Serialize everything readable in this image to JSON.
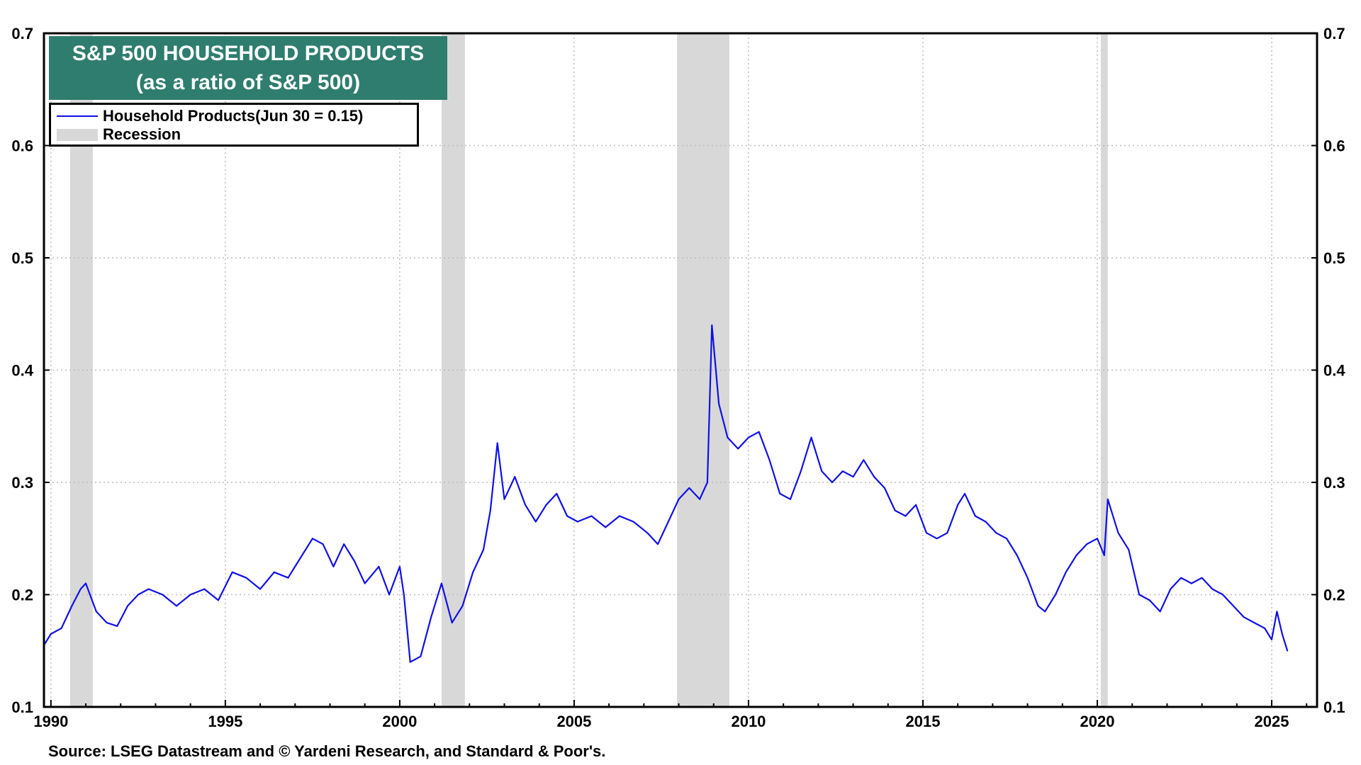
{
  "title": {
    "line1": "S&P 500 HOUSEHOLD PRODUCTS",
    "line2": "(as a ratio of S&P 500)",
    "background": "#2e7d6e"
  },
  "legend": {
    "series_label": "Household Products(Jun 30 = 0.15)",
    "recession_label": "Recession"
  },
  "source": "Source: LSEG Datastream and © Yardeni Research, and Standard & Poor's.",
  "colors": {
    "series": "#1010e8",
    "recession": "#d8d8d8",
    "grid": "#bbbbbb"
  },
  "chart_data": {
    "type": "line",
    "title": "S&P 500 HOUSEHOLD PRODUCTS",
    "subtitle": "(as a ratio of S&P 500)",
    "xlabel": "",
    "ylabel": "",
    "xlim": [
      1989.8,
      2026.3
    ],
    "ylim": [
      0.1,
      0.7
    ],
    "y_ticks": [
      0.1,
      0.2,
      0.3,
      0.4,
      0.5,
      0.6,
      0.7
    ],
    "y_tick_labels": [
      "0.1",
      "0.2",
      "0.3",
      "0.4",
      "0.5",
      "0.6",
      "0.7"
    ],
    "x_ticks": [
      1990,
      1995,
      2000,
      2005,
      2010,
      2015,
      2020,
      2025
    ],
    "x_tick_labels": [
      "1990",
      "1995",
      "2000",
      "2005",
      "2010",
      "2015",
      "2020",
      "2025"
    ],
    "grid": true,
    "y_axis_both_sides": true,
    "recessions": [
      [
        1990.55,
        1991.2
      ],
      [
        2001.2,
        2001.87
      ],
      [
        2007.95,
        2009.45
      ],
      [
        2020.1,
        2020.3
      ]
    ],
    "series": [
      {
        "name": "Household Products(Jun 30 = 0.15)",
        "x": [
          1989.8,
          1990.0,
          1990.3,
          1990.6,
          1990.85,
          1991.0,
          1991.3,
          1991.6,
          1991.9,
          1992.2,
          1992.5,
          1992.8,
          1993.2,
          1993.6,
          1994.0,
          1994.4,
          1994.8,
          1995.2,
          1995.6,
          1996.0,
          1996.4,
          1996.8,
          1997.2,
          1997.5,
          1997.8,
          1998.1,
          1998.4,
          1998.7,
          1999.0,
          1999.4,
          1999.7,
          2000.0,
          2000.12,
          2000.3,
          2000.6,
          2000.9,
          2001.2,
          2001.5,
          2001.8,
          2002.1,
          2002.4,
          2002.6,
          2002.8,
          2003.0,
          2003.3,
          2003.6,
          2003.9,
          2004.2,
          2004.5,
          2004.8,
          2005.1,
          2005.5,
          2005.9,
          2006.3,
          2006.7,
          2007.1,
          2007.4,
          2007.7,
          2008.0,
          2008.3,
          2008.6,
          2008.82,
          2008.95,
          2009.15,
          2009.4,
          2009.7,
          2010.0,
          2010.3,
          2010.6,
          2010.9,
          2011.2,
          2011.5,
          2011.8,
          2012.1,
          2012.4,
          2012.7,
          2013.0,
          2013.3,
          2013.6,
          2013.9,
          2014.2,
          2014.5,
          2014.8,
          2015.1,
          2015.4,
          2015.7,
          2016.0,
          2016.2,
          2016.5,
          2016.8,
          2017.1,
          2017.4,
          2017.7,
          2018.0,
          2018.3,
          2018.5,
          2018.8,
          2019.1,
          2019.4,
          2019.7,
          2020.0,
          2020.2,
          2020.3,
          2020.6,
          2020.9,
          2021.2,
          2021.5,
          2021.8,
          2022.1,
          2022.4,
          2022.7,
          2023.0,
          2023.3,
          2023.6,
          2023.9,
          2024.2,
          2024.5,
          2024.8,
          2025.0,
          2025.15,
          2025.3,
          2025.45
        ],
        "values": [
          0.155,
          0.165,
          0.17,
          0.19,
          0.205,
          0.21,
          0.185,
          0.175,
          0.172,
          0.19,
          0.2,
          0.205,
          0.2,
          0.19,
          0.2,
          0.205,
          0.195,
          0.22,
          0.215,
          0.205,
          0.22,
          0.215,
          0.235,
          0.25,
          0.245,
          0.225,
          0.245,
          0.23,
          0.21,
          0.225,
          0.2,
          0.225,
          0.2,
          0.14,
          0.145,
          0.18,
          0.21,
          0.175,
          0.19,
          0.22,
          0.24,
          0.275,
          0.335,
          0.285,
          0.305,
          0.28,
          0.265,
          0.28,
          0.29,
          0.27,
          0.265,
          0.27,
          0.26,
          0.27,
          0.265,
          0.255,
          0.245,
          0.265,
          0.285,
          0.295,
          0.285,
          0.3,
          0.44,
          0.37,
          0.34,
          0.33,
          0.34,
          0.345,
          0.32,
          0.29,
          0.285,
          0.31,
          0.34,
          0.31,
          0.3,
          0.31,
          0.305,
          0.32,
          0.305,
          0.295,
          0.275,
          0.27,
          0.28,
          0.255,
          0.25,
          0.255,
          0.28,
          0.29,
          0.27,
          0.265,
          0.255,
          0.25,
          0.235,
          0.215,
          0.19,
          0.185,
          0.2,
          0.22,
          0.235,
          0.245,
          0.25,
          0.235,
          0.285,
          0.255,
          0.24,
          0.2,
          0.195,
          0.185,
          0.205,
          0.215,
          0.21,
          0.215,
          0.205,
          0.2,
          0.19,
          0.18,
          0.175,
          0.17,
          0.16,
          0.185,
          0.165,
          0.15
        ]
      }
    ]
  }
}
